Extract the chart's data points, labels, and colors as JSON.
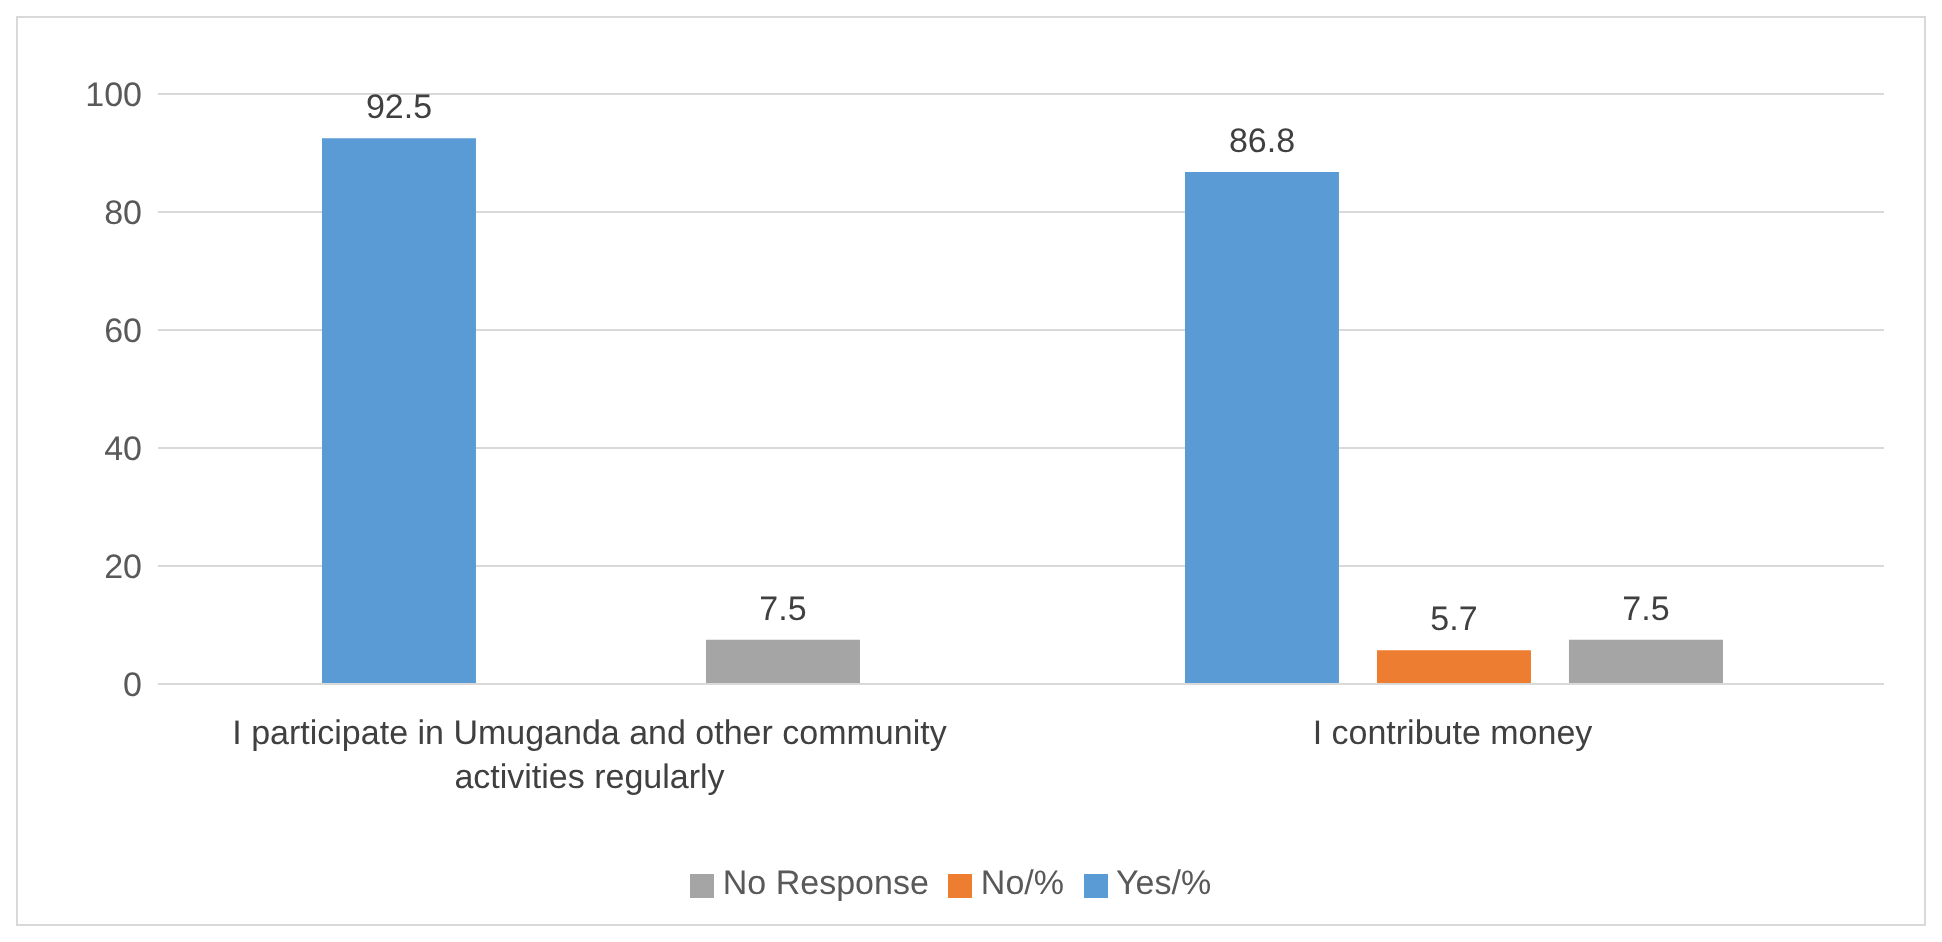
{
  "chart_data": {
    "type": "bar",
    "categories": [
      "I participate in Umuganda and other community activities regularly",
      "I contribute money"
    ],
    "series": [
      {
        "name": "Yes/%",
        "color": "#5b9bd5",
        "values": [
          92.5,
          86.8
        ]
      },
      {
        "name": "No/%",
        "color": "#ed7d31",
        "values": [
          null,
          5.7
        ]
      },
      {
        "name": "No Response",
        "color": "#a5a5a5",
        "values": [
          7.5,
          7.5
        ]
      }
    ],
    "ylim": [
      0,
      100
    ],
    "yticks": [
      0,
      20,
      40,
      60,
      80,
      100
    ],
    "grid": "y",
    "legend": "bottom",
    "data_labels": true
  }
}
